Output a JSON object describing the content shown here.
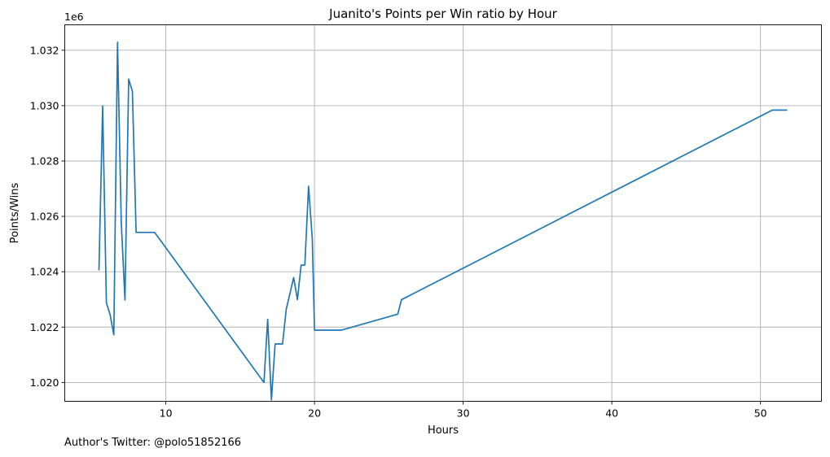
{
  "footnote": "Author's Twitter: @polo51852166",
  "chart_data": {
    "type": "line",
    "title": "Juanito's Points per Win ratio by Hour",
    "xlabel": "Hours",
    "ylabel": "Points/Wins",
    "y_offset_label": "1e6",
    "xlim": [
      3.2,
      54.1
    ],
    "ylim": [
      1.01932,
      1.03292
    ],
    "x_ticks": [
      10,
      20,
      30,
      40,
      50
    ],
    "x_tick_labels": [
      "10",
      "20",
      "30",
      "40",
      "50"
    ],
    "y_ticks": [
      1.02,
      1.022,
      1.024,
      1.026,
      1.028,
      1.03,
      1.032
    ],
    "y_tick_labels": [
      "1.020",
      "1.022",
      "1.024",
      "1.026",
      "1.028",
      "1.030",
      "1.032"
    ],
    "grid": true,
    "series": [
      {
        "color": "#1f77b4",
        "x": [
          5.5,
          5.75,
          6.0,
          6.25,
          6.5,
          6.75,
          7.0,
          7.25,
          7.5,
          7.75,
          8.0,
          9.25,
          16.6,
          16.85,
          17.1,
          17.35,
          17.6,
          17.85,
          18.1,
          18.6,
          18.85,
          19.1,
          19.35,
          19.6,
          19.85,
          20.0,
          21.8,
          25.6,
          25.85,
          50.8,
          51.8
        ],
        "y": [
          1.02405,
          1.02999,
          1.02288,
          1.02245,
          1.02172,
          1.03229,
          1.0258,
          1.02298,
          1.03096,
          1.03052,
          1.02542,
          1.02542,
          1.02,
          1.02228,
          1.01937,
          1.02139,
          1.02139,
          1.02139,
          1.02265,
          1.02379,
          1.02299,
          1.02424,
          1.02424,
          1.02709,
          1.02519,
          1.02189,
          1.02189,
          1.02247,
          1.02299,
          1.02984,
          1.02984
        ]
      }
    ]
  }
}
